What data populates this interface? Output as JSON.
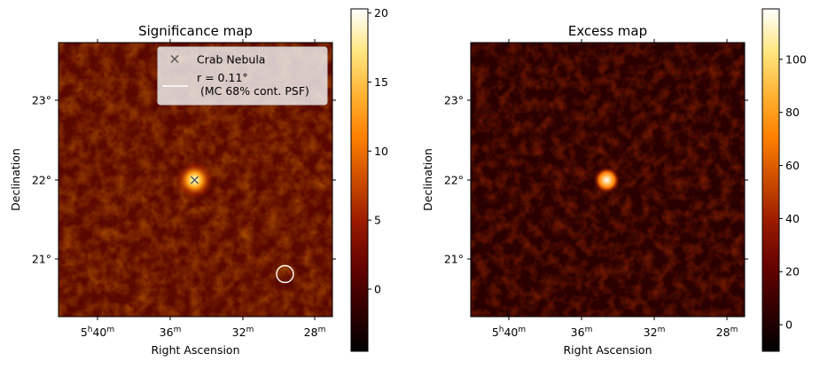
{
  "chart_data": [
    {
      "type": "heatmap",
      "title": "Significance map",
      "xlabel": "Right Ascension",
      "ylabel": "Declination",
      "x_ticks": [
        {
          "h": "5",
          "m": "40"
        },
        {
          "h": "",
          "m": "36"
        },
        {
          "h": "",
          "m": "32"
        },
        {
          "h": "",
          "m": "28"
        }
      ],
      "y_ticks": [
        "23°",
        "22°",
        "21°"
      ],
      "colorbar": {
        "ticks": [
          "20",
          "15",
          "10",
          "5",
          "0"
        ],
        "range": [
          -4.5,
          20.3
        ],
        "values": [
          20,
          15,
          10,
          5,
          0
        ]
      },
      "colormap": [
        "#000000",
        "#330000",
        "#660300",
        "#991a00",
        "#cc4c00",
        "#ff8000",
        "#ffb334",
        "#ffe680",
        "#ffffff"
      ],
      "source": {
        "ra": "5h34.5m",
        "dec": "22.0°",
        "peak": 20
      },
      "legend": {
        "location": "top-right",
        "entries": [
          {
            "marker": "x",
            "label": "Crab Nebula"
          },
          {
            "marker": "line",
            "label_line1": "r = 0.11°",
            "label_line2": " (MC 68% cont. PSF)"
          }
        ]
      }
    },
    {
      "type": "heatmap",
      "title": "Excess map",
      "xlabel": "Right Ascension",
      "ylabel": "Declination",
      "x_ticks": [
        {
          "h": "5",
          "m": "40"
        },
        {
          "h": "",
          "m": "36"
        },
        {
          "h": "",
          "m": "32"
        },
        {
          "h": "",
          "m": "28"
        }
      ],
      "y_ticks": [
        "23°",
        "22°",
        "21°"
      ],
      "colorbar": {
        "ticks": [
          "100",
          "80",
          "60",
          "40",
          "20",
          "0"
        ],
        "range": [
          -10,
          119
        ],
        "values": [
          100,
          80,
          60,
          40,
          20,
          0
        ]
      },
      "source": {
        "ra": "5h34.5m",
        "dec": "22.0°",
        "peak": 119
      }
    }
  ]
}
